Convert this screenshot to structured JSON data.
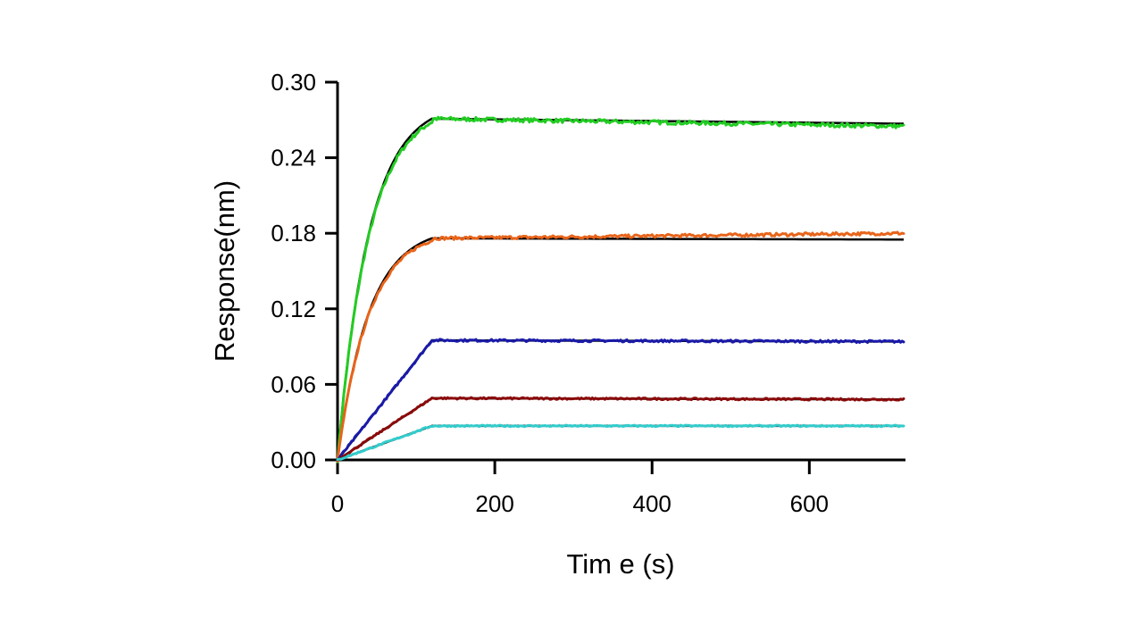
{
  "chart_data": {
    "type": "line",
    "xlabel": "Tim e  (s)",
    "ylabel": "Response(nm)",
    "xlim": [
      0,
      720
    ],
    "ylim": [
      0,
      0.3
    ],
    "x_ticks": [
      {
        "value": 0,
        "label": "0"
      },
      {
        "value": 200,
        "label": "200"
      },
      {
        "value": 400,
        "label": "400"
      },
      {
        "value": 600,
        "label": "600"
      }
    ],
    "y_ticks": [
      {
        "value": 0.0,
        "label": "0.00"
      },
      {
        "value": 0.06,
        "label": "0.06"
      },
      {
        "value": 0.12,
        "label": "0.12"
      },
      {
        "value": 0.18,
        "label": "0.18"
      },
      {
        "value": 0.24,
        "label": "0.24"
      },
      {
        "value": 0.3,
        "label": "0.30"
      }
    ],
    "grid": false,
    "legend": "none",
    "association_end": 120,
    "series": [
      {
        "color": "#22cc22",
        "plateau": 0.271,
        "end": 0.265,
        "fit_end": 0.267,
        "shape": "curved"
      },
      {
        "color": "#e8641a",
        "plateau": 0.176,
        "end": 0.18,
        "fit_end": 0.175,
        "shape": "curved"
      },
      {
        "color": "#1a1aaa",
        "plateau": 0.095,
        "end": 0.094,
        "fit_end": 0.094,
        "shape": "linear"
      },
      {
        "color": "#8b0a0a",
        "plateau": 0.049,
        "end": 0.048,
        "fit_end": 0.048,
        "shape": "linear"
      },
      {
        "color": "#33cccc",
        "plateau": 0.027,
        "end": 0.027,
        "fit_end": 0.027,
        "shape": "linear"
      }
    ]
  }
}
